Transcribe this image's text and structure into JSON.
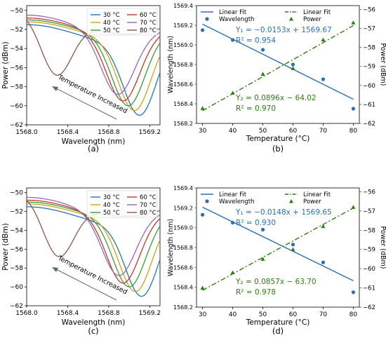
{
  "colors": {
    "c30": "#1f77b4",
    "c40": "#d4a017",
    "c50": "#3a9a3a",
    "c60": "#c0392b",
    "c70": "#9467bd",
    "c80": "#8c564b",
    "wl": "#2c6fb4",
    "pw": "#2e7d0f",
    "temp_arrow": "#666666"
  },
  "chart_data": [
    {
      "type": "line",
      "caption": "(a)",
      "xlabel": "Wavelength (nm)",
      "ylabel": "Power (dBm)",
      "xlim": [
        1568.0,
        1569.3
      ],
      "ylim": [
        -62,
        -49.5
      ],
      "xticks": [
        1568.0,
        1568.4,
        1568.8,
        1569.2
      ],
      "xtick_labels": [
        "1568.0",
        "1568.4",
        "1568.8",
        "1569.2"
      ],
      "yticks": [
        -62,
        -60,
        -58,
        -56,
        -54,
        -52,
        -50
      ],
      "ytick_labels": [
        "−62",
        "−60",
        "−58",
        "−56",
        "−54",
        "−52",
        "−50"
      ],
      "legend_position": "top-right",
      "annotation": "Temperature Increased",
      "series": [
        {
          "name": "30 °C",
          "color_key": "c30",
          "dip_center": 1569.1,
          "dip_depth": -61.0,
          "dip_width": 0.22,
          "baseline": -51.5,
          "edge_min": -53.5
        },
        {
          "name": "40 °C",
          "color_key": "c40",
          "dip_center": 1569.05,
          "dip_depth": -60.5,
          "dip_width": 0.22,
          "baseline": -51.2,
          "edge_min": -53.0
        },
        {
          "name": "50 °C",
          "color_key": "c50",
          "dip_center": 1568.99,
          "dip_depth": -60.0,
          "dip_width": 0.22,
          "baseline": -51.0,
          "edge_min": -52.8
        },
        {
          "name": "60 °C",
          "color_key": "c60",
          "dip_center": 1568.94,
          "dip_depth": -59.5,
          "dip_width": 0.22,
          "baseline": -50.8,
          "edge_min": -52.7
        },
        {
          "name": "70 °C",
          "color_key": "c70",
          "dip_center": 1568.89,
          "dip_depth": -58.8,
          "dip_width": 0.22,
          "baseline": -50.5,
          "edge_min": -52.6
        },
        {
          "name": "80 °C",
          "color_key": "c80",
          "dip_center": 1568.3,
          "dip_depth": -56.8,
          "dip_width": 0.22,
          "baseline": -50.0,
          "edge_min": -52.5
        }
      ]
    },
    {
      "type": "scatter",
      "caption": "(b)",
      "xlabel": "Temperature (°C)",
      "ylabel": "Wavelength (nm)",
      "ylabel_right": "Power (dBm)",
      "x": [
        30,
        40,
        50,
        60,
        70,
        80
      ],
      "xlim": [
        28,
        82
      ],
      "ylim": [
        1568.2,
        1569.4
      ],
      "ylim_right": [
        -62,
        -55.8
      ],
      "xticks": [
        30,
        40,
        50,
        60,
        70,
        80
      ],
      "yticks": [
        1568.2,
        1568.4,
        1568.6,
        1568.8,
        1569.0,
        1569.2,
        1569.4
      ],
      "ytick_labels": [
        "1568.2",
        "1568.4",
        "1568.6",
        "1568.8",
        "1569.0",
        "1569.2",
        "1569.4"
      ],
      "yticks_right": [
        -62,
        -61,
        -60,
        -59,
        -58,
        -57,
        -56
      ],
      "ytick_labels_right": [
        "−62",
        "−61",
        "−60",
        "−59",
        "−58",
        "−57",
        "−56"
      ],
      "wavelength": [
        1569.15,
        1569.05,
        1568.95,
        1568.8,
        1568.65,
        1568.35
      ],
      "power": [
        -61.2,
        -60.4,
        -59.4,
        -59.1,
        -57.6,
        -56.7
      ],
      "fit_wl": {
        "slope": -0.0153,
        "intercept": 1569.67
      },
      "fit_pw": {
        "slope": 0.0896,
        "intercept": -64.02
      },
      "eq1": "Y₁ = −0.0153x + 1569.67",
      "r2_1": "R² = 0.954",
      "eq2": "Y₂ = 0.0896x − 64.02",
      "r2_2": "R² = 0.970",
      "legend": [
        "Linear Fit",
        "Wavelength",
        "Linear Fit",
        "Power"
      ],
      "legend_position": "top"
    },
    {
      "type": "line",
      "caption": "(c)",
      "xlabel": "Wavelength (nm)",
      "ylabel": "Power (dBm)",
      "xlim": [
        1568.0,
        1569.3
      ],
      "ylim": [
        -62,
        -49.5
      ],
      "xticks": [
        1568.0,
        1568.4,
        1568.8,
        1569.2
      ],
      "xtick_labels": [
        "1568.0",
        "1568.4",
        "1568.8",
        "1569.2"
      ],
      "yticks": [
        -62,
        -60,
        -58,
        -56,
        -54,
        -52,
        -50
      ],
      "ytick_labels": [
        "−62",
        "−60",
        "−58",
        "−56",
        "−54",
        "−52",
        "−50"
      ],
      "legend_position": "top-right",
      "annotation": "Temperature Increased",
      "series": [
        {
          "name": "30 °C",
          "color_key": "c30",
          "dip_center": 1569.12,
          "dip_depth": -61.0,
          "dip_width": 0.22,
          "baseline": -51.5,
          "edge_min": -53.5
        },
        {
          "name": "40 °C",
          "color_key": "c40",
          "dip_center": 1569.06,
          "dip_depth": -60.5,
          "dip_width": 0.22,
          "baseline": -51.2,
          "edge_min": -53.0
        },
        {
          "name": "50 °C",
          "color_key": "c50",
          "dip_center": 1569.0,
          "dip_depth": -60.0,
          "dip_width": 0.22,
          "baseline": -51.0,
          "edge_min": -52.8
        },
        {
          "name": "60 °C",
          "color_key": "c60",
          "dip_center": 1568.94,
          "dip_depth": -59.6,
          "dip_width": 0.22,
          "baseline": -50.8,
          "edge_min": -52.7
        },
        {
          "name": "70 °C",
          "color_key": "c70",
          "dip_center": 1568.9,
          "dip_depth": -58.8,
          "dip_width": 0.22,
          "baseline": -50.5,
          "edge_min": -52.6
        },
        {
          "name": "80 °C",
          "color_key": "c80",
          "dip_center": 1568.32,
          "dip_depth": -56.8,
          "dip_width": 0.22,
          "baseline": -50.0,
          "edge_min": -52.5
        }
      ]
    },
    {
      "type": "scatter",
      "caption": "(d)",
      "xlabel": "Temperature (°C)",
      "ylabel": "Wavelength (nm)",
      "ylabel_right": "Power (dBm)",
      "x": [
        30,
        40,
        50,
        60,
        70,
        80
      ],
      "xlim": [
        28,
        82
      ],
      "ylim": [
        1568.2,
        1569.4
      ],
      "ylim_right": [
        -62,
        -55.8
      ],
      "xticks": [
        30,
        40,
        50,
        60,
        70,
        80
      ],
      "yticks": [
        1568.2,
        1568.4,
        1568.6,
        1568.8,
        1569.0,
        1569.2,
        1569.4
      ],
      "ytick_labels": [
        "1568.2",
        "1568.4",
        "1568.6",
        "1568.8",
        "1569.0",
        "1569.2",
        "1569.4"
      ],
      "yticks_right": [
        -62,
        -61,
        -60,
        -59,
        -58,
        -57,
        -56
      ],
      "ytick_labels_right": [
        "−62",
        "−61",
        "−60",
        "−59",
        "−58",
        "−57",
        "−56"
      ],
      "wavelength": [
        1569.13,
        1569.05,
        1568.98,
        1568.83,
        1568.65,
        1568.35
      ],
      "power": [
        -61.0,
        -60.2,
        -59.5,
        -59.0,
        -57.8,
        -56.8
      ],
      "fit_wl": {
        "slope": -0.0148,
        "intercept": 1569.65
      },
      "fit_pw": {
        "slope": 0.0857,
        "intercept": -63.7
      },
      "eq1": "Y₁ = −0.0148x + 1569.65",
      "r2_1": "R² = 0.930",
      "eq2": "Y₂ = 0.0857x − 63.70",
      "r2_2": "R² = 0.978",
      "legend": [
        "Linear Fit",
        "Wavelength",
        "Linear Fit",
        "Power"
      ],
      "legend_position": "top"
    }
  ]
}
